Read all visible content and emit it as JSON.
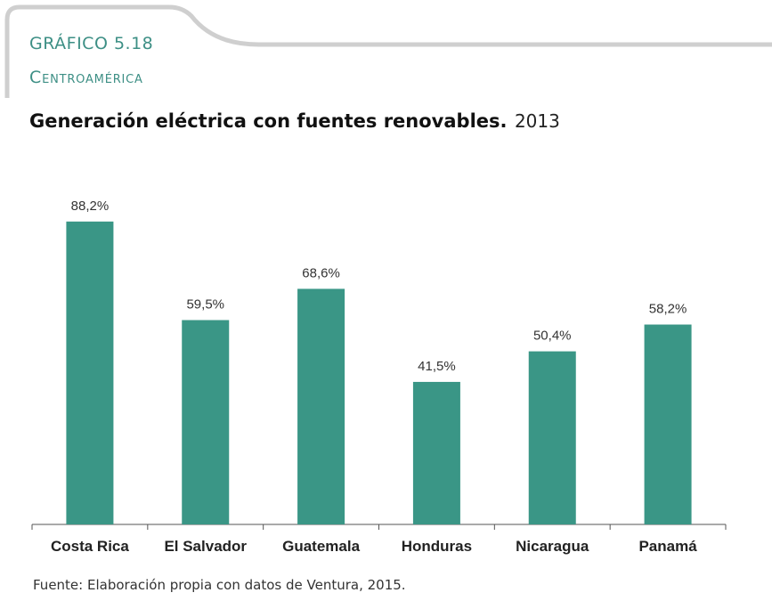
{
  "header": {
    "chart_label": "GRÁFICO 5.18",
    "region": "Centroamérica"
  },
  "colors": {
    "bar": "#3a9686",
    "accent": "#3d8f85",
    "frame": "#c8c8c8"
  },
  "chart_data": {
    "type": "bar",
    "title": "Generación eléctrica con fuentes renovables.",
    "subtitle": "2013",
    "categories": [
      "Costa Rica",
      "El Salvador",
      "Guatemala",
      "Honduras",
      "Nicaragua",
      "Panamá"
    ],
    "values": [
      88.2,
      59.5,
      68.6,
      41.5,
      50.4,
      58.2
    ],
    "data_labels": [
      "88,2%",
      "59,5%",
      "68,6%",
      "41,5%",
      "50,4%",
      "58,2%"
    ],
    "ylim": [
      0,
      100
    ],
    "grid": false,
    "xlabel": "",
    "ylabel": ""
  },
  "source": "Fuente: Elaboración propia con datos de Ventura, 2015."
}
